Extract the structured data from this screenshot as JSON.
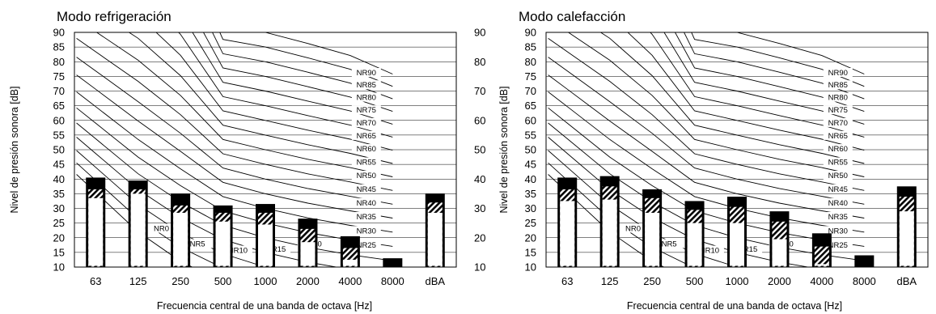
{
  "chart_data": [
    {
      "type": "bar",
      "title": "Modo refrigeración",
      "xlabel": "Frecuencia central de una banda de octava [Hz]",
      "ylabel": "Nivel de presión sonora [dB]",
      "ylim": [
        10,
        90
      ],
      "yticks": [
        "10",
        "15",
        "20",
        "25",
        "30",
        "35",
        "40",
        "45",
        "50",
        "55",
        "60",
        "65",
        "70",
        "75",
        "80",
        "85",
        "90"
      ],
      "categories": [
        "63",
        "125",
        "250",
        "500",
        "1000",
        "2000",
        "4000",
        "8000",
        "dBA"
      ],
      "series": [
        {
          "values": [
            33.5,
            35,
            28.5,
            25.5,
            24.5,
            18.5,
            12.5,
            10,
            28.5
          ]
        },
        {
          "values": [
            36.5,
            36.5,
            31,
            28.5,
            28.5,
            23,
            16.5,
            10,
            32
          ]
        },
        {
          "values": [
            40.5,
            39.5,
            35,
            31,
            31.5,
            26.5,
            20.5,
            13,
            35
          ]
        }
      ],
      "nr_curves": [
        "NR90",
        "NR85",
        "NR80",
        "NR75",
        "NR70",
        "NR65",
        "NR60",
        "NR55",
        "NR50",
        "NR45",
        "NR40",
        "NR35",
        "NR30",
        "NR25",
        "NR20",
        "NR15",
        "NR10",
        "NR5",
        "NR0"
      ]
    },
    {
      "type": "bar",
      "title": "Modo calefacción",
      "xlabel": "Frecuencia central de una banda de octava [Hz]",
      "ylabel": "Nivel de presión sonora [dB]",
      "ylim": [
        10,
        90
      ],
      "yticks": [
        "10",
        "15",
        "20",
        "25",
        "30",
        "35",
        "40",
        "45",
        "50",
        "55",
        "60",
        "65",
        "70",
        "75",
        "80",
        "85",
        "90"
      ],
      "categories": [
        "63",
        "125",
        "250",
        "500",
        "1000",
        "2000",
        "4000",
        "8000",
        "dBA"
      ],
      "series": [
        {
          "values": [
            32.5,
            33,
            28.5,
            25,
            25,
            19.5,
            11,
            10,
            29
          ]
        },
        {
          "values": [
            36.5,
            37.5,
            33.5,
            29.5,
            30.5,
            25.5,
            17,
            10,
            34
          ]
        },
        {
          "values": [
            40.5,
            41,
            36.5,
            32.5,
            34,
            29,
            21.5,
            14,
            37.5
          ]
        }
      ],
      "nr_curves": [
        "NR90",
        "NR85",
        "NR80",
        "NR75",
        "NR70",
        "NR65",
        "NR60",
        "NR55",
        "NR50",
        "NR45",
        "NR40",
        "NR35",
        "NR30",
        "NR25",
        "NR20",
        "NR15",
        "NR10",
        "NR5",
        "NR0"
      ]
    }
  ]
}
